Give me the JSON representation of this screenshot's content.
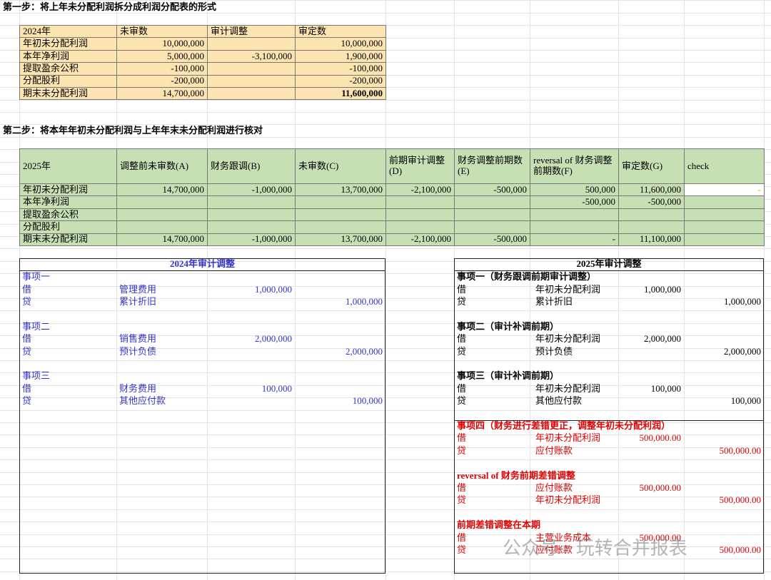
{
  "step1": {
    "title": "第一步：将上年未分配利润拆分成利润分配表的形式",
    "table": {
      "fill": "#fce4b0",
      "header": [
        "2024年",
        "未审数",
        "审计调整",
        "审定数"
      ],
      "rows": [
        [
          "年初未分配利润",
          "10,000,000",
          null,
          "10,000,000"
        ],
        [
          "本年净利润",
          "5,000,000",
          "-3,100,000",
          "1,900,000"
        ],
        [
          "提取盈余公积",
          "-100,000",
          null,
          "-100,000"
        ],
        [
          "分配股利",
          "-200,000",
          null,
          "-200,000"
        ],
        [
          "期末未分配利润",
          "14,700,000",
          null,
          "11,600,000"
        ]
      ]
    }
  },
  "step2": {
    "title": "第二步：将本年年初未分配利润与上年年末未分配利润进行核对",
    "table": {
      "fill": "#c6e0b4",
      "header": [
        "2025年",
        "调整前未审数(A)",
        "财务跟调(B)",
        "未审数(C)",
        "前期审计调整(D)",
        "财务调整前期数(E)",
        "reversal of 财务调整前期数(F)",
        "审定数(G)",
        "check"
      ],
      "rows": [
        [
          "年初未分配利润",
          "14,700,000",
          "-1,000,000",
          "13,700,000",
          "-2,100,000",
          "-500,000",
          "500,000",
          "11,600,000",
          "-"
        ],
        [
          "本年净利润",
          null,
          null,
          null,
          null,
          null,
          "-500,000",
          "-500,000",
          null
        ],
        [
          "提取盈余公积",
          null,
          null,
          null,
          null,
          null,
          null,
          null,
          null
        ],
        [
          "分配股利",
          null,
          null,
          null,
          null,
          null,
          null,
          null,
          null
        ],
        [
          "期末未分配利润",
          "14,700,000",
          "-1,000,000",
          "13,700,000",
          "-2,100,000",
          "-500,000",
          "-",
          "11,100,000",
          null
        ]
      ]
    }
  },
  "adjust2024": {
    "title": "2024年审计调整",
    "color": "#3333cc",
    "items": [
      {
        "heading": "事项一",
        "lines": [
          [
            "借",
            "管理费用",
            "1,000,000",
            null
          ],
          [
            "贷",
            "累计折旧",
            null,
            "1,000,000"
          ]
        ]
      },
      {
        "heading": "事项二",
        "lines": [
          [
            "借",
            "销售费用",
            "2,000,000",
            null
          ],
          [
            "贷",
            "预计负债",
            null,
            "2,000,000"
          ]
        ]
      },
      {
        "heading": "事项三",
        "lines": [
          [
            "借",
            "财务费用",
            "100,000",
            null
          ],
          [
            "贷",
            "其他应付款",
            null,
            "100,000"
          ]
        ]
      }
    ]
  },
  "adjust2025": {
    "title": "2025年审计调整",
    "items": [
      {
        "heading": "事项一（财务跟调前期审计调整）",
        "lines": [
          [
            "借",
            "年初未分配利润",
            "1,000,000",
            null
          ],
          [
            "贷",
            "累计折旧",
            null,
            "1,000,000"
          ]
        ]
      },
      {
        "heading": "事项二（审计补调前期）",
        "lines": [
          [
            "借",
            "年初未分配利润",
            "2,000,000",
            null
          ],
          [
            "贷",
            "预计负债",
            null,
            "2,000,000"
          ]
        ]
      },
      {
        "heading": "事项三（审计补调前期）",
        "lines": [
          [
            "借",
            "年初未分配利润",
            "100,000",
            null
          ],
          [
            "贷",
            "其他应付款",
            null,
            "100,000"
          ]
        ]
      },
      {
        "heading": "事项四（财务进行差错更正，调整年初未分配利润）",
        "color": "#e00000",
        "lines": [
          [
            "借",
            "年初未分配利润",
            "500,000.00",
            null
          ],
          [
            "贷",
            "应付账款",
            null,
            "500,000.00"
          ]
        ]
      },
      {
        "heading": "reversal of 财务前期差错调整",
        "color": "#e00000",
        "lines": [
          [
            "借",
            "应付账款",
            "500,000.00",
            null
          ],
          [
            "贷",
            "年初未分配利润",
            null,
            "500,000.00"
          ]
        ]
      },
      {
        "heading": "前期差错调整在本期",
        "color": "#e00000",
        "lines": [
          [
            "借",
            "主营业务成本",
            "500,000.00",
            null
          ],
          [
            "贷",
            "应付账款",
            null,
            "500,000.00"
          ]
        ]
      }
    ]
  },
  "watermark": "公众号 · 玩转合并报表"
}
